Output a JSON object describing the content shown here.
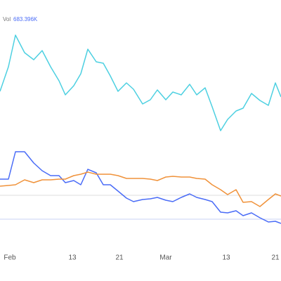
{
  "chart_data": {
    "type": "line",
    "volume_label": "Vol",
    "volume_value": "683.396K",
    "x": [
      0,
      3,
      5.5,
      8.75,
      12,
      15,
      18,
      21,
      23.25,
      26.25,
      28.75,
      31.25,
      34.25,
      36.75,
      39.25,
      42,
      45,
      47.5,
      50.75,
      53.5,
      56,
      59,
      61.5,
      64.5,
      67.5,
      70,
      73,
      75.5,
      78.5,
      81,
      84,
      86.5,
      89.5,
      92.5,
      95.5,
      98,
      100
    ],
    "xlim": [
      0,
      100
    ],
    "ylim": [
      0,
      100
    ],
    "xticks": [
      {
        "value": 3.5,
        "label": "Feb"
      },
      {
        "value": 25.75,
        "label": "13"
      },
      {
        "value": 42.5,
        "label": "21"
      },
      {
        "value": 59,
        "label": "Mar"
      },
      {
        "value": 80.5,
        "label": "13"
      },
      {
        "value": 98,
        "label": "21"
      }
    ],
    "reference_lines": [
      {
        "value": 30.5,
        "color": "#dddddd"
      },
      {
        "value": 22,
        "color": "#c9d0f5"
      }
    ],
    "series": [
      {
        "color": "#4dd0e1",
        "values": [
          67.5,
          76.25,
          87.5,
          81.25,
          78.75,
          82,
          76.25,
          71.25,
          66.25,
          69.5,
          73.75,
          82.5,
          78,
          77.5,
          73,
          67.5,
          70.5,
          68.25,
          63,
          64.5,
          68,
          64.5,
          67.25,
          66.25,
          70,
          66.25,
          68.75,
          62,
          53.5,
          57.5,
          60.5,
          61.5,
          66.75,
          64.25,
          62.5,
          70.5,
          65.5
        ]
      },
      {
        "color": "#4a6cf7",
        "values": [
          36.25,
          36.25,
          46,
          46,
          42,
          39.25,
          37.5,
          37.5,
          35,
          35.75,
          34.25,
          39.75,
          38.5,
          34.25,
          34.25,
          32,
          29.5,
          28.25,
          29,
          29.25,
          29.75,
          28.75,
          28.25,
          29.75,
          31,
          29.75,
          29,
          28.25,
          24.5,
          24.25,
          25,
          23.25,
          24.25,
          22.5,
          21,
          21.25,
          20.5
        ]
      },
      {
        "color": "#f0923a",
        "values": [
          33.75,
          34,
          34.25,
          36,
          35,
          36,
          36,
          36.25,
          36.25,
          37.5,
          38,
          38.75,
          38,
          38,
          38,
          37.5,
          36.5,
          36.5,
          36.5,
          36.25,
          35.75,
          37,
          37.25,
          37,
          37,
          36.5,
          36.25,
          34.25,
          32.5,
          30.75,
          32.5,
          28,
          28.25,
          26.5,
          29,
          31,
          30.25
        ]
      }
    ]
  }
}
